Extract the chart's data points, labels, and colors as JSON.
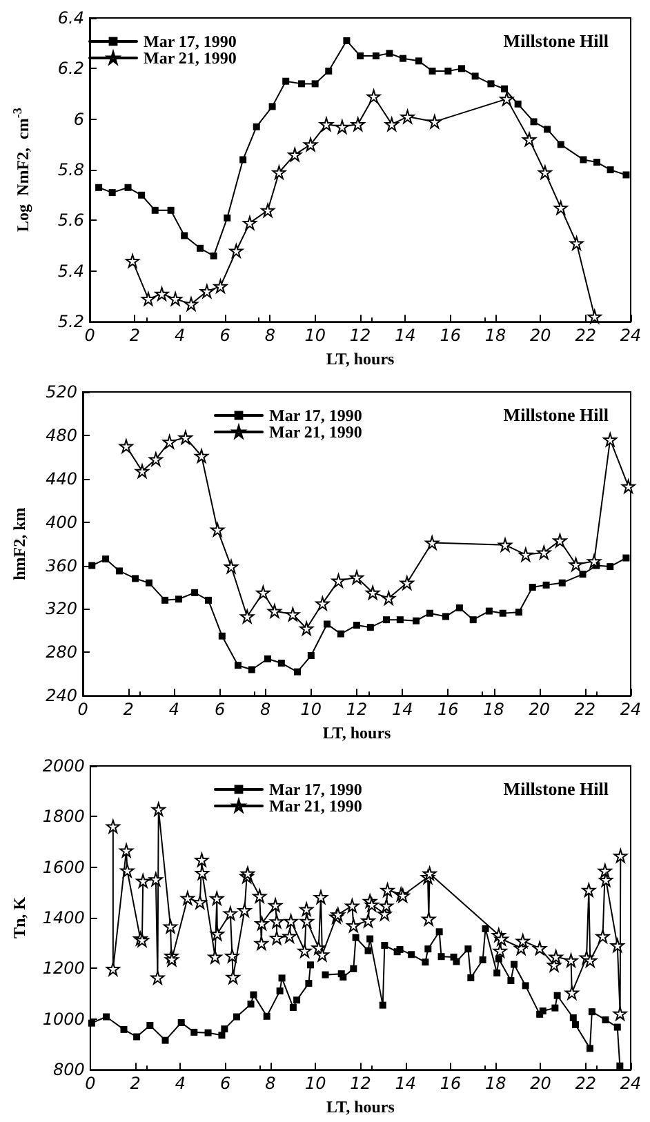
{
  "chart_data": [
    {
      "type": "line",
      "xlabel": "LT, hours",
      "ylabel": "Log  NmF2,  cm$^{-3}$",
      "annotations": [
        "Millstone Hill"
      ],
      "legend": "top left",
      "xlim": [
        0,
        24
      ],
      "xticks": [
        0,
        2,
        4,
        6,
        8,
        10,
        12,
        14,
        16,
        18,
        20,
        22,
        24
      ],
      "ylim": [
        5.2,
        6.4
      ],
      "yticks": [
        5.2,
        5.4,
        5.6,
        5.8,
        6.0,
        6.2,
        6.4
      ],
      "line_style": "solid",
      "series": [
        {
          "name": "Mar 17, 1990",
          "color": "#000000",
          "marker": "square",
          "x": [
            0.4,
            1.0,
            1.7,
            2.3,
            2.9,
            3.6,
            4.2,
            4.9,
            5.5,
            6.1,
            6.8,
            7.4,
            8.1,
            8.7,
            9.4,
            10.0,
            10.6,
            11.4,
            12.0,
            12.7,
            13.3,
            13.9,
            14.6,
            15.2,
            15.9,
            16.5,
            17.1,
            17.8,
            18.4,
            19.0,
            19.7,
            20.3,
            20.9,
            21.9,
            22.5,
            23.1,
            23.8
          ],
          "values": [
            5.73,
            5.71,
            5.73,
            5.7,
            5.64,
            5.64,
            5.54,
            5.49,
            5.46,
            5.61,
            5.84,
            5.97,
            6.05,
            6.15,
            6.14,
            6.14,
            6.19,
            6.31,
            6.25,
            6.25,
            6.26,
            6.24,
            6.23,
            6.19,
            6.19,
            6.2,
            6.17,
            6.14,
            6.12,
            6.06,
            5.99,
            5.96,
            5.9,
            5.84,
            5.83,
            5.8,
            5.78
          ]
        },
        {
          "name": "Mar 21, 1990",
          "color": "#000000",
          "marker": "star",
          "x": [
            1.9,
            2.6,
            3.2,
            3.8,
            4.5,
            5.2,
            5.8,
            6.5,
            7.1,
            7.9,
            8.4,
            9.1,
            9.8,
            10.5,
            11.2,
            11.9,
            12.6,
            13.4,
            14.1,
            15.3,
            18.5,
            19.5,
            20.2,
            20.9,
            21.6,
            22.4
          ],
          "values": [
            5.44,
            5.29,
            5.31,
            5.29,
            5.27,
            5.32,
            5.34,
            5.48,
            5.59,
            5.64,
            5.79,
            5.86,
            5.9,
            5.98,
            5.97,
            5.98,
            6.09,
            5.98,
            6.01,
            5.99,
            6.08,
            5.92,
            5.79,
            5.65,
            5.51,
            5.22
          ]
        }
      ]
    },
    {
      "type": "line",
      "xlabel": "LT, hours",
      "ylabel": "hmF2, km",
      "annotations": [
        "Millstone Hill"
      ],
      "legend": "top",
      "xlim": [
        0,
        24
      ],
      "xticks": [
        0,
        2,
        4,
        6,
        8,
        10,
        12,
        14,
        16,
        18,
        20,
        22,
        24
      ],
      "ylim": [
        240,
        520
      ],
      "yticks": [
        240,
        280,
        320,
        360,
        400,
        440,
        480,
        520
      ],
      "line_style": "solid",
      "series": [
        {
          "name": "Mar 17, 1990",
          "color": "#000000",
          "marker": "square",
          "x": [
            0.4,
            1.0,
            1.6,
            2.3,
            2.9,
            3.6,
            4.2,
            4.9,
            5.5,
            6.1,
            6.8,
            7.4,
            8.1,
            8.7,
            9.4,
            10.0,
            10.7,
            11.3,
            12.0,
            12.6,
            13.3,
            13.9,
            14.6,
            15.2,
            15.9,
            16.5,
            17.1,
            17.8,
            18.4,
            19.1,
            19.7,
            20.3,
            21.0,
            21.9,
            22.5,
            23.1,
            23.8
          ],
          "values": [
            360,
            366,
            355,
            348,
            344,
            328,
            329,
            335,
            328,
            295,
            268,
            264,
            274,
            270,
            262,
            277,
            306,
            297,
            305,
            303,
            310,
            310,
            309,
            316,
            313,
            321,
            310,
            318,
            316,
            317,
            340,
            342,
            344,
            352,
            360,
            359,
            367
          ]
        },
        {
          "name": "Mar 21, 1990",
          "color": "#000000",
          "marker": "star",
          "x": [
            1.9,
            2.6,
            3.2,
            3.8,
            4.5,
            5.2,
            5.9,
            6.5,
            7.2,
            7.9,
            8.4,
            9.2,
            9.8,
            10.5,
            11.2,
            12.0,
            12.7,
            13.4,
            14.2,
            15.3,
            18.5,
            19.4,
            20.2,
            20.9,
            21.6,
            22.4,
            23.1,
            23.9
          ],
          "values": [
            470,
            447,
            458,
            474,
            478,
            461,
            393,
            359,
            313,
            335,
            318,
            315,
            302,
            325,
            346,
            349,
            335,
            330,
            344,
            381,
            379,
            370,
            372,
            383,
            361,
            364,
            476,
            433
          ]
        }
      ]
    },
    {
      "type": "line",
      "xlabel": "LT, hours",
      "ylabel": "Tn, K",
      "annotations": [
        "Millstone Hill"
      ],
      "legend": "top",
      "xlim": [
        0,
        24
      ],
      "xticks": [
        0,
        2,
        4,
        6,
        8,
        10,
        12,
        14,
        16,
        18,
        20,
        22,
        24
      ],
      "ylim": [
        800,
        2000
      ],
      "yticks": [
        800,
        1000,
        1200,
        1400,
        1600,
        1800,
        2000
      ],
      "line_style": "solid",
      "series": [
        {
          "name": "Mar 17, 1990",
          "color": "#000000",
          "marker": "square",
          "x": [
            0.06,
            0.71,
            1.49,
            2.06,
            2.65,
            3.33,
            4.04,
            4.61,
            5.23,
            5.84,
            5.96,
            6.5,
            7.13,
            7.25,
            7.84,
            8.42,
            8.51,
            9.01,
            9.17,
            9.7,
            9.78,
            10.3,
            10.44,
            11.15,
            11.23,
            11.69,
            11.79,
            12.34,
            12.42,
            12.99,
            13.07,
            13.63,
            13.75,
            14.26,
            14.88,
            15.0,
            15.5,
            15.59,
            16.14,
            16.26,
            16.78,
            16.9,
            17.43,
            17.55,
            18.06,
            18.14,
            18.68,
            18.82,
            19.33,
            19.96,
            20.1,
            20.64,
            20.74,
            21.45,
            21.55,
            22.19,
            22.28,
            22.88,
            23.41,
            23.52
          ],
          "values": [
            984,
            1009,
            959,
            930,
            975,
            916,
            986,
            948,
            946,
            936,
            961,
            1009,
            1059,
            1096,
            1011,
            1111,
            1162,
            1046,
            1075,
            1141,
            1214,
            null,
            1175,
            1179,
            1166,
            1199,
            1322,
            1270,
            1317,
            1055,
            1291,
            1266,
            1275,
            1255,
            1225,
            1277,
            1345,
            1247,
            1245,
            1227,
            1277,
            1163,
            1234,
            1357,
            1182,
            1238,
            1152,
            1216,
            1132,
            1019,
            1032,
            1044,
            1093,
            1005,
            978,
            884,
            1029,
            997,
            968,
            815
          ]
        },
        {
          "name": "Mar 21, 1990",
          "color": "#000000",
          "marker": "star",
          "x": [
            1.01,
            1.01,
            1.6,
            1.64,
            2.22,
            2.3,
            2.34,
            2.91,
            2.99,
            3.03,
            3.56,
            3.6,
            3.62,
            4.32,
            4.87,
            4.95,
            4.97,
            5.54,
            5.62,
            5.64,
            6.22,
            6.3,
            6.34,
            6.85,
            6.95,
            6.99,
            7.52,
            7.6,
            7.62,
            8.22,
            8.28,
            8.28,
            8.85,
            8.91,
            9.52,
            9.6,
            9.62,
            10.14,
            10.24,
            10.3,
            10.93,
            11.0,
            11.63,
            11.69,
            12.34,
            12.42,
            12.5,
            13.07,
            13.15,
            13.2,
            13.8,
            13.88,
            14.99,
            15.03,
            15.07,
            18.14,
            18.2,
            18.26,
            19.13,
            19.21,
            19.96,
            20.6,
            20.68,
            21.35,
            21.39,
            22.04,
            22.14,
            22.2,
            22.76,
            22.86,
            22.9,
            23.41,
            23.53,
            23.55
          ],
          "values": [
            1761,
            1198,
            1666,
            1587,
            1318,
            1312,
            1546,
            1552,
            1164,
            1829,
            1366,
            1250,
            1236,
            1478,
            1462,
            1629,
            1577,
            1246,
            1477,
            1337,
            1418,
            1250,
            1166,
            1430,
            1564,
            1575,
            1486,
            1300,
            1378,
            1450,
            1386,
            1321,
            1328,
            1387,
            1270,
            1434,
            1387,
            1282,
            1482,
            1255,
            1404,
            1413,
            1448,
            1370,
            1389,
            1466,
            1452,
            1416,
            1448,
            1510,
            1493,
            1488,
            1561,
            1396,
            1575,
            1332,
            1270,
            1317,
            1281,
            1309,
            1280,
            1214,
            1246,
            1232,
            1104,
            1243,
            1510,
            1232,
            1327,
            1586,
            1550,
            1291,
            1022,
            1645
          ]
        }
      ]
    }
  ]
}
